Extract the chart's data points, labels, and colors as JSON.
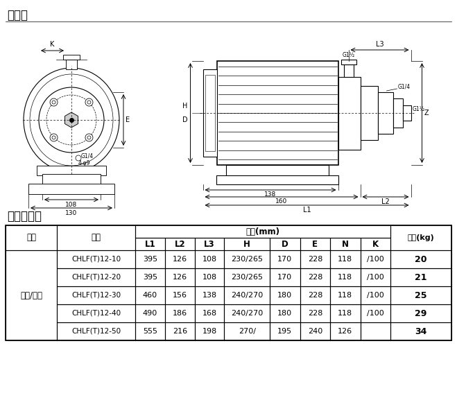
{
  "title_diagram": "安装图",
  "title_table": "尺寸和重量",
  "background_color": "#ffffff",
  "table": {
    "motor_label": "三相/单相",
    "rows": [
      [
        "CHLF(T)12-10",
        "395",
        "126",
        "108",
        "230/265",
        "170",
        "228",
        "118",
        "/100",
        "20"
      ],
      [
        "CHLF(T)12-20",
        "395",
        "126",
        "108",
        "230/265",
        "170",
        "228",
        "118",
        "/100",
        "21"
      ],
      [
        "CHLF(T)12-30",
        "460",
        "156",
        "138",
        "240/270",
        "180",
        "228",
        "118",
        "/100",
        "25"
      ],
      [
        "CHLF(T)12-40",
        "490",
        "186",
        "168",
        "240/270",
        "180",
        "228",
        "118",
        "/100",
        "29"
      ],
      [
        "CHLF(T)12-50",
        "555",
        "216",
        "198",
        "270/",
        "195",
        "240",
        "126",
        "",
        "34"
      ]
    ]
  },
  "lw": 0.8,
  "lw_thick": 1.2
}
